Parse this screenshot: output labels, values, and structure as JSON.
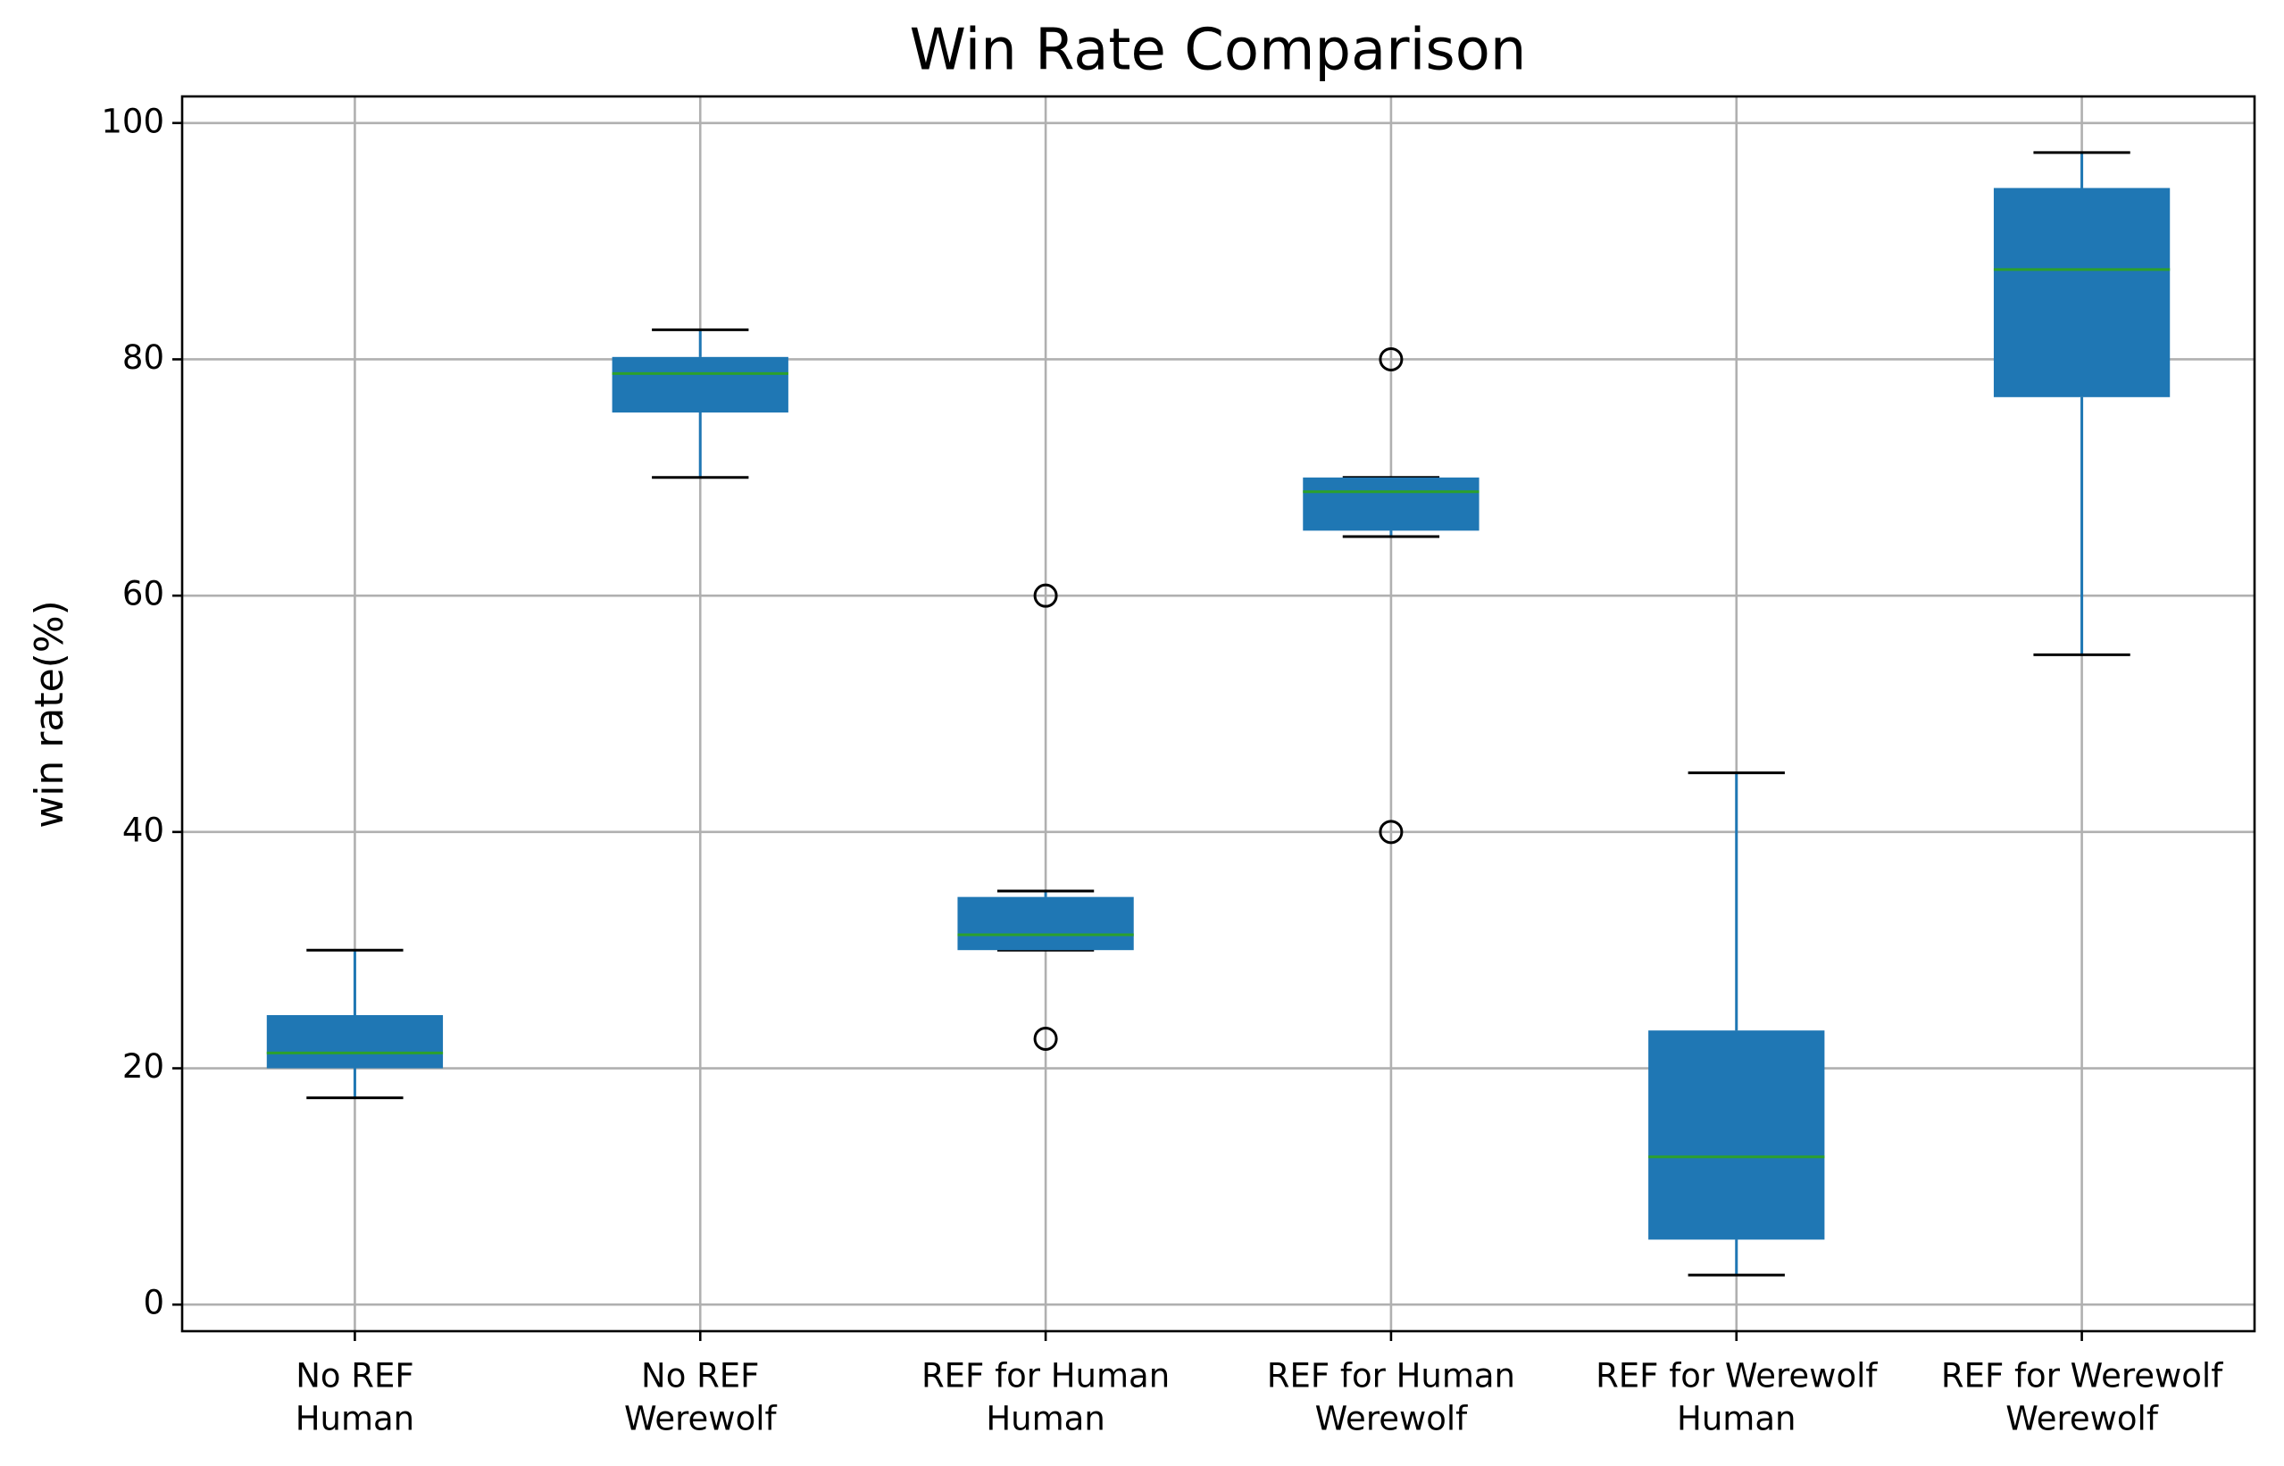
{
  "chart_data": {
    "type": "box",
    "title": "Win Rate Comparison",
    "ylabel": "win rate(%)",
    "categories": [
      [
        "No REF",
        "Human"
      ],
      [
        "No REF",
        "Werewolf"
      ],
      [
        "REF for Human",
        "Human"
      ],
      [
        "REF for Human",
        "Werewolf"
      ],
      [
        "REF for Werewolf",
        "Human"
      ],
      [
        "REF for Werewolf",
        "Werewolf"
      ]
    ],
    "boxes": [
      {
        "whislo": 17.5,
        "q1": 20,
        "med": 21.3,
        "q3": 24.5,
        "whishi": 30,
        "fliers": []
      },
      {
        "whislo": 70,
        "q1": 75.5,
        "med": 78.8,
        "q3": 80.2,
        "whishi": 82.5,
        "fliers": []
      },
      {
        "whislo": 30,
        "q1": 30,
        "med": 31.3,
        "q3": 34.5,
        "whishi": 35,
        "fliers": [
          60,
          22.5
        ]
      },
      {
        "whislo": 65,
        "q1": 65.5,
        "med": 68.8,
        "q3": 70,
        "whishi": 70,
        "fliers": [
          80,
          40
        ]
      },
      {
        "whislo": 2.5,
        "q1": 5.5,
        "med": 12.5,
        "q3": 23.2,
        "whishi": 45,
        "fliers": []
      },
      {
        "whislo": 55,
        "q1": 76.8,
        "med": 87.6,
        "q3": 94.5,
        "whishi": 97.5,
        "fliers": []
      }
    ],
    "color": "#1f77b4",
    "median_color": "#2ca02c",
    "ylim": [
      -2.25,
      102.25
    ],
    "yticks": [
      0,
      20,
      40,
      60,
      80,
      100
    ],
    "grid": true
  }
}
